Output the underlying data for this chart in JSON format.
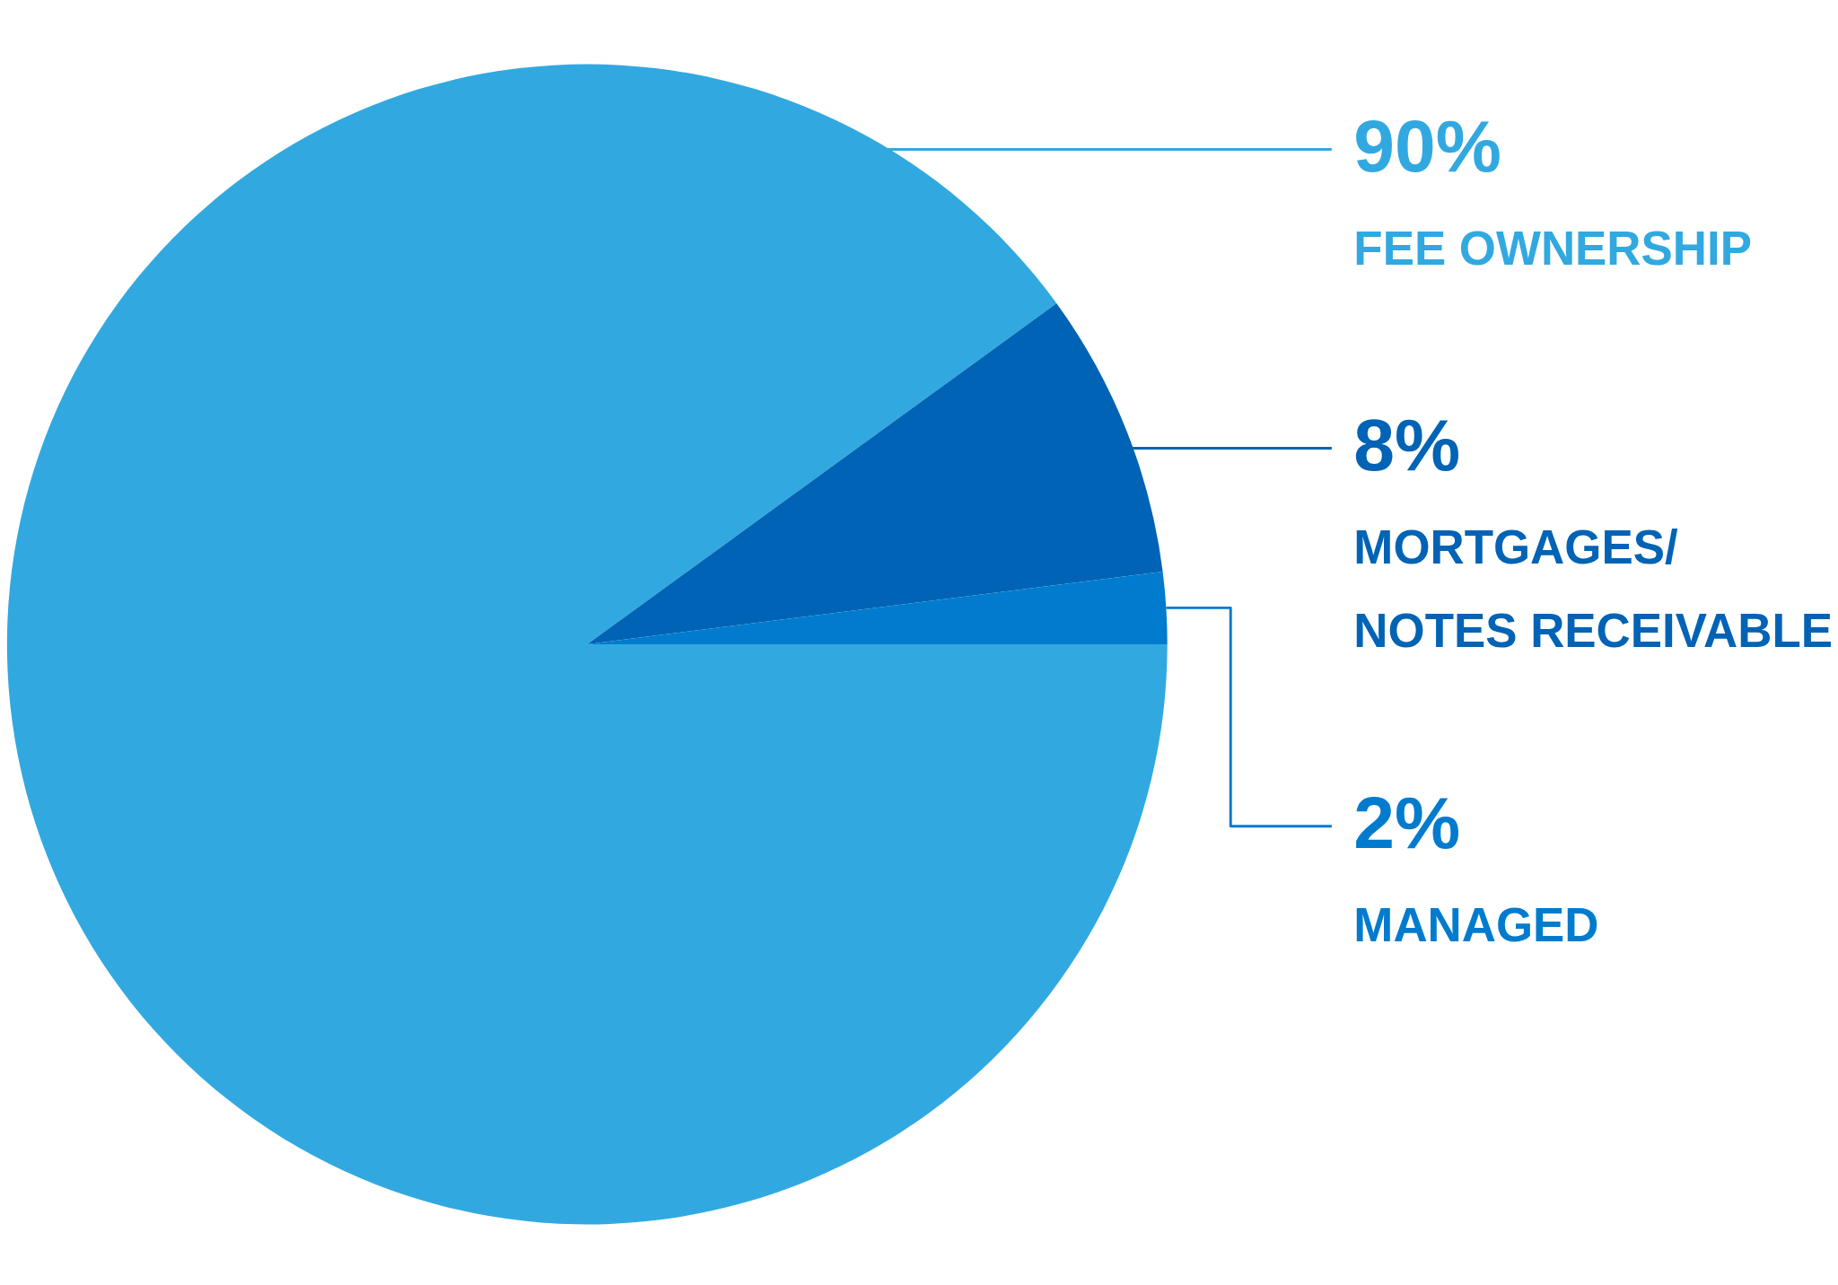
{
  "chart_data": {
    "type": "pie",
    "categories": [
      "FEE OWNERSHIP",
      "MORTGAGES/ NOTES RECEIVABLE",
      "MANAGED"
    ],
    "values": [
      90,
      8,
      2
    ],
    "colors": [
      "#31a9e0",
      "#0063b5",
      "#007bce"
    ],
    "value_labels": [
      "90%",
      "8%",
      "2%"
    ],
    "legend": false
  }
}
